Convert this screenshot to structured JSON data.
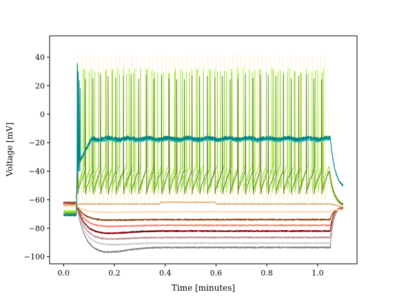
{
  "chart_data": {
    "type": "line",
    "title": "",
    "xlabel": "Time [minutes]",
    "ylabel": "Voltage [mV]",
    "xlim": [
      -0.055,
      1.155
    ],
    "ylim": [
      -105,
      55
    ],
    "x_ticks": [
      0.0,
      0.2,
      0.4,
      0.6,
      0.8,
      1.0
    ],
    "x_tick_labels": [
      "0.0",
      "0.2",
      "0.4",
      "0.6",
      "0.8",
      "1.0"
    ],
    "y_ticks": [
      -100,
      -80,
      -60,
      -40,
      -20,
      0,
      20,
      40
    ],
    "y_tick_labels": [
      "−100",
      "−80",
      "−60",
      "−40",
      "−20",
      "0",
      "20",
      "40"
    ],
    "grid": false,
    "legend": "none",
    "stimulus": {
      "start_min": 0.05,
      "end_min": 1.05,
      "end_of_record_min": 1.1
    },
    "series": [
      {
        "color": "#7f7f7f",
        "type": "hyper",
        "baseline_mV": -62,
        "sag_min_mV": -97.5,
        "steady_mV": -93.5
      },
      {
        "color": "#cccccc",
        "type": "hyper",
        "baseline_mV": -62,
        "sag_min_mV": -92,
        "steady_mV": -90.5
      },
      {
        "color": "#bc8f8f",
        "type": "hyper",
        "baseline_mV": -62,
        "sag_min_mV": -88,
        "steady_mV": -86.5
      },
      {
        "color": "#800000",
        "type": "hyper",
        "baseline_mV": -62.5,
        "sag_min_mV": -84,
        "steady_mV": -82
      },
      {
        "color": "#fa8072",
        "type": "hyper",
        "baseline_mV": -63,
        "sag_min_mV": -79,
        "steady_mV": -78
      },
      {
        "color": "#8b4513",
        "type": "hyper",
        "baseline_mV": -63.5,
        "sag_min_mV": -74.5,
        "steady_mV": -74
      },
      {
        "color": "#ffdab9",
        "type": "hyper",
        "baseline_mV": -64,
        "sag_min_mV": -69,
        "steady_mV": -68.5
      },
      {
        "color": "#deb887",
        "type": "depol",
        "baseline_mV": -64.5,
        "steady_mV": -63
      },
      {
        "color": "#fff0c4",
        "type": "spiking",
        "baseline_mV": -65,
        "trough_mV": -52,
        "peak_mV": 45,
        "spikes": 60
      },
      {
        "color": "#7cfc00",
        "type": "spiking",
        "baseline_mV": -68,
        "trough_mV": -45,
        "peak_mV": 35,
        "spikes": 44
      },
      {
        "color": "#9acd32",
        "type": "spiking",
        "baseline_mV": -69,
        "trough_mV": -42,
        "peak_mV": 34,
        "spikes": 36
      },
      {
        "color": "#556b2f",
        "type": "spiking",
        "baseline_mV": -70,
        "trough_mV": -46,
        "peak_mV": 30,
        "spikes": 33
      },
      {
        "color": "#20b2aa",
        "type": "block",
        "baseline_mV": -70.5,
        "plateau_mV": -18,
        "peak_mV": 36,
        "spikes": 4
      },
      {
        "color": "#008080",
        "type": "block",
        "baseline_mV": -71,
        "plateau_mV": -17,
        "peak_mV": 35,
        "spikes": 3
      }
    ]
  }
}
